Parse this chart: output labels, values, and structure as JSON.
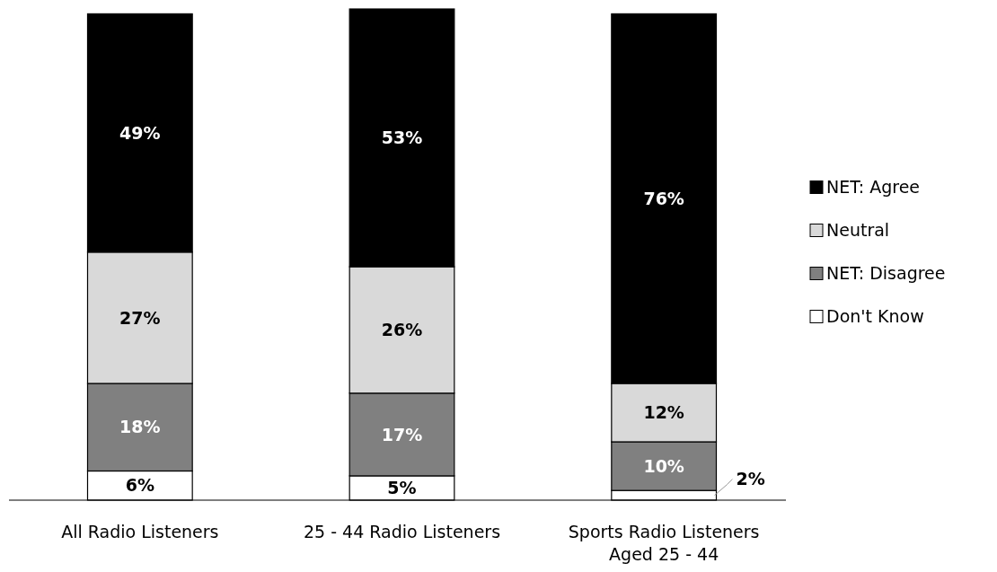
{
  "chart_data": {
    "type": "bar",
    "stacked": true,
    "legend": "right",
    "categories": [
      "All Radio Listeners",
      "25 - 44 Radio Listeners",
      "Sports Radio Listeners Aged 25 - 44"
    ],
    "series": [
      {
        "name": "Don't Know",
        "color": "#ffffff",
        "values": [
          6,
          5,
          2
        ],
        "value_labels": [
          "6%",
          "5%",
          "2%"
        ]
      },
      {
        "name": "NET: Disagree",
        "color": "#808080",
        "values": [
          18,
          17,
          10
        ],
        "value_labels": [
          "18%",
          "17%",
          "10%"
        ]
      },
      {
        "name": "Neutral",
        "color": "#d9d9d9",
        "values": [
          27,
          26,
          12
        ],
        "value_labels": [
          "27%",
          "26%",
          "12%"
        ]
      },
      {
        "name": "NET: Agree",
        "color": "#000000",
        "values": [
          49,
          53,
          76
        ],
        "value_labels": [
          "49%",
          "53%",
          "76%"
        ]
      }
    ]
  }
}
